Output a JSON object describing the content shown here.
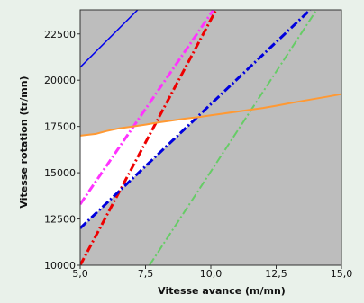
{
  "chart_data": {
    "type": "line",
    "xlabel": "Vitesse avance (m/mn)",
    "ylabel": "Vitesse rotation (tr/mn)",
    "xlim": [
      5.0,
      15.0
    ],
    "ylim": [
      10000,
      23800
    ],
    "x_ticks": [
      5.0,
      7.5,
      10.0,
      12.5,
      15.0
    ],
    "x_tick_labels": [
      "5,0",
      "7,5",
      "10,0",
      "12,5",
      "15,0"
    ],
    "y_ticks": [
      10000,
      12500,
      15000,
      17500,
      20000,
      22500
    ],
    "y_tick_labels": [
      "10000",
      "12500",
      "15000",
      "17500",
      "20000",
      "22500"
    ],
    "grid": false,
    "background": "#bdbdbd",
    "unshaded_region_color": "#ffffff",
    "series": [
      {
        "color": "#0000ee",
        "style": "solid",
        "width": 1.5,
        "x": [
          5.0,
          7.2
        ],
        "y": [
          20700,
          23800
        ]
      },
      {
        "color": "#ff33ff",
        "style": "dashdot",
        "width": 3,
        "x": [
          5.0,
          10.1
        ],
        "y": [
          13300,
          23800
        ]
      },
      {
        "color": "#ee0000",
        "style": "dashdot",
        "width": 3,
        "x": [
          5.0,
          10.2
        ],
        "y": [
          10000,
          23800
        ]
      },
      {
        "color": "#0000dd",
        "style": "dashdot",
        "width": 3,
        "x": [
          5.0,
          13.8
        ],
        "y": [
          12000,
          23800
        ]
      },
      {
        "color": "#66cc66",
        "style": "dashdot",
        "width": 2,
        "x": [
          7.65,
          14.05
        ],
        "y": [
          10000,
          23800
        ]
      },
      {
        "color": "#ff9933",
        "style": "solid",
        "width": 2,
        "x": [
          5.0,
          5.3,
          5.6,
          6.0,
          6.5,
          7.0,
          7.5,
          8.0,
          8.5,
          9.0,
          9.5,
          10.0,
          10.5,
          11.0,
          11.5,
          12.0,
          12.5,
          13.0,
          13.5,
          14.0,
          14.5,
          15.0
        ],
        "y": [
          17000,
          17050,
          17100,
          17250,
          17400,
          17500,
          17600,
          17720,
          17820,
          17920,
          18000,
          18100,
          18200,
          18300,
          18400,
          18500,
          18620,
          18750,
          18880,
          19000,
          19120,
          19250
        ]
      }
    ]
  }
}
